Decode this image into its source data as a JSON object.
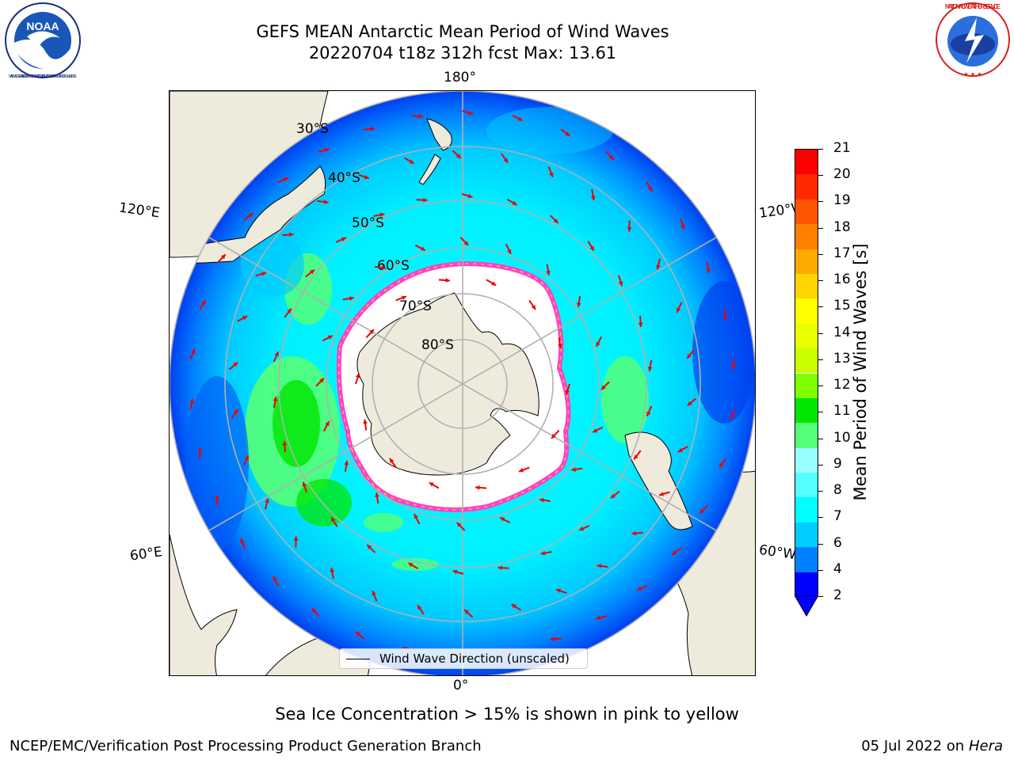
{
  "title": {
    "line1": "GEFS MEAN Antarctic Mean Period of Wind Waves",
    "line2": "20220704 t18z 312h fcst   Max: 13.61"
  },
  "logos": {
    "left": "noaa-logo",
    "left_text": "NOAA",
    "left_ring": "NATIONAL OCEANIC AND ATMOSPHERIC ADMINISTRATION · U.S. DEPARTMENT OF COMMERCE",
    "right": "national-weather-service-logo",
    "right_ring": "NATIONAL WEATHER SERVICE"
  },
  "map": {
    "projection": "south-polar-stereographic",
    "longitude_labels": {
      "top": "180°",
      "bottom": "0°",
      "upper_left": "120°E",
      "upper_right": "120°W",
      "lower_left": "60°E",
      "lower_right": "60°W"
    },
    "latitude_labels": [
      "30°S",
      "40°S",
      "50°S",
      "60°S",
      "70°S",
      "80°S"
    ]
  },
  "legend": {
    "label": "Wind Wave Direction (unscaled)"
  },
  "colorbar": {
    "label": "Mean Period of Wind Waves [s]",
    "ticks": [
      "2",
      "4",
      "6",
      "7",
      "8",
      "9",
      "10",
      "11",
      "12",
      "13",
      "14",
      "15",
      "16",
      "17",
      "18",
      "19",
      "20",
      "21"
    ],
    "tick_labels": [
      "21",
      "20",
      "19",
      "18",
      "17",
      "16",
      "15",
      "14",
      "13",
      "12",
      "11",
      "10",
      "9",
      "8",
      "7",
      "6",
      "4",
      "2"
    ],
    "colors": [
      "#ff0000",
      "#ff2a00",
      "#ff5500",
      "#ff8000",
      "#ffaa00",
      "#ffd400",
      "#ffff00",
      "#eaff00",
      "#c8ff00",
      "#80ff00",
      "#00e600",
      "#55ff77",
      "#99ffff",
      "#55ffff",
      "#00ffff",
      "#00ccff",
      "#0080ff",
      "#0000ff"
    ],
    "extend": "min"
  },
  "caption": "Sea Ice Concentration > 15% is shown in pink to yellow",
  "footer": {
    "left": "NCEP/EMC/Verification Post Processing Product Generation Branch",
    "right_date": "05 Jul 2022 on",
    "right_host": "Hera"
  }
}
